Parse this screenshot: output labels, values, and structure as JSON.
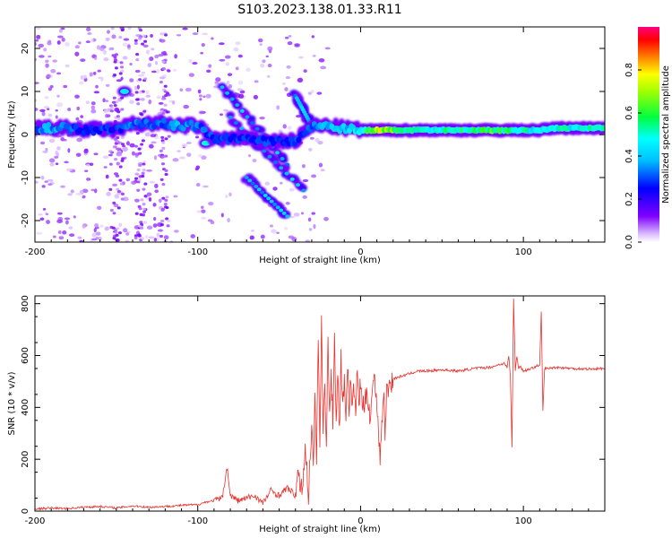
{
  "figure": {
    "title": "S103.2023.138.01.33.R11"
  },
  "colors": {
    "snr_line": "#e8322e",
    "colormap": [
      "#ffffff",
      "#8000ff",
      "#0000ff",
      "#00ffff",
      "#00ff00",
      "#ffff00",
      "#ff8000",
      "#ff0000",
      "#ff0080"
    ]
  },
  "chart_data": [
    {
      "type": "heatmap",
      "title": "",
      "xlabel": "Height of straight line (km)",
      "ylabel": "Frequency (Hz)",
      "xlim": [
        -200,
        150
      ],
      "ylim": [
        -25,
        25
      ],
      "x_ticks": [
        -200,
        -100,
        0,
        100
      ],
      "y_ticks": [
        -20,
        -10,
        0,
        10,
        20
      ],
      "colorbar": {
        "label": "Normalized spectral amplitude",
        "range": [
          0,
          1
        ],
        "ticks": [
          "0.0",
          "0.2",
          "0.4",
          "0.6",
          "0.8"
        ]
      },
      "features": {
        "main_trace": {
          "x": [
            -200,
            -190,
            -180,
            -170,
            -160,
            -150,
            -140,
            -130,
            -120,
            -110,
            -100,
            -90,
            -80,
            -70,
            -60,
            -50,
            -40,
            -30,
            -20,
            -10,
            0,
            10,
            20,
            30,
            40,
            50,
            60,
            70,
            80,
            90,
            100,
            110,
            120,
            130,
            140,
            150
          ],
          "freq": [
            1.5,
            1.5,
            1.5,
            1,
            1.2,
            1,
            2.5,
            2.5,
            2.5,
            2,
            2,
            -1,
            -1,
            -1,
            -1.5,
            -1.5,
            -1.5,
            2,
            2,
            1.5,
            1,
            1,
            1,
            1,
            1,
            1,
            1,
            1,
            1,
            1,
            1,
            1,
            1.5,
            1.5,
            1.5,
            1.5
          ],
          "amplitude": [
            0.35,
            0.4,
            0.35,
            0.3,
            0.3,
            0.3,
            0.35,
            0.35,
            0.35,
            0.4,
            0.35,
            0.3,
            0.3,
            0.3,
            0.3,
            0.3,
            0.3,
            0.35,
            0.4,
            0.45,
            0.5,
            0.8,
            0.7,
            0.55,
            0.55,
            0.55,
            0.6,
            0.6,
            0.65,
            0.6,
            0.55,
            0.5,
            0.55,
            0.55,
            0.55,
            0.55
          ]
        },
        "descending_streaks": [
          {
            "x": [
              -85,
              -45
            ],
            "freq": [
              11,
              -7
            ]
          },
          {
            "x": [
              -80,
              -35
            ],
            "freq": [
              4,
              -13
            ]
          },
          {
            "x": [
              -70,
              -45
            ],
            "freq": [
              -10,
              -19
            ]
          },
          {
            "x": [
              -40,
              -30
            ],
            "freq": [
              9,
              2
            ]
          }
        ],
        "blobs": [
          {
            "x": -145,
            "freq": 10,
            "amplitude": 0.45
          },
          {
            "x": -95,
            "freq": -2,
            "amplitude": 0.5
          }
        ]
      }
    },
    {
      "type": "line",
      "title": "",
      "xlabel": "Height of straight line (km)",
      "ylabel": "SNR (10 * v/v)",
      "xlim": [
        -200,
        150
      ],
      "ylim": [
        0,
        830
      ],
      "x_ticks": [
        -200,
        -100,
        0,
        100
      ],
      "y_ticks": [
        0,
        200,
        400,
        600,
        800
      ],
      "series": [
        {
          "x": [
            -200,
            -190,
            -180,
            -170,
            -160,
            -150,
            -140,
            -130,
            -120,
            -110,
            -100,
            -95,
            -90,
            -85,
            -82,
            -80,
            -75,
            -70,
            -65,
            -60,
            -55,
            -50,
            -45,
            -40,
            -38,
            -36,
            -34,
            -32,
            -30,
            -29,
            -28,
            -27,
            -26,
            -25,
            -24,
            -23,
            -22,
            -21,
            -20,
            -19,
            -18,
            -17,
            -16,
            -15,
            -14,
            -13,
            -12,
            -11,
            -10,
            -9,
            -8,
            -7,
            -6,
            -5,
            -4,
            -3,
            -2,
            -1,
            0,
            2,
            4,
            6,
            8,
            10,
            12,
            14,
            15,
            16,
            18,
            20,
            25,
            30,
            35,
            40,
            50,
            60,
            70,
            80,
            85,
            88,
            90,
            91,
            92,
            93,
            94,
            95,
            96,
            97,
            98,
            100,
            105,
            108,
            110,
            111,
            112,
            113,
            115,
            120,
            130,
            140,
            150
          ],
          "y": [
            8,
            12,
            10,
            15,
            18,
            12,
            20,
            15,
            18,
            22,
            25,
            35,
            40,
            50,
            170,
            60,
            40,
            50,
            60,
            30,
            80,
            60,
            90,
            60,
            140,
            70,
            250,
            60,
            350,
            150,
            420,
            200,
            700,
            240,
            730,
            300,
            500,
            280,
            650,
            380,
            520,
            350,
            670,
            360,
            540,
            300,
            600,
            380,
            520,
            380,
            560,
            400,
            500,
            390,
            480,
            380,
            550,
            400,
            500,
            380,
            470,
            360,
            520,
            430,
            200,
            470,
            300,
            460,
            490,
            510,
            520,
            530,
            540,
            540,
            545,
            540,
            550,
            555,
            565,
            570,
            555,
            600,
            520,
            250,
            820,
            540,
            600,
            550,
            560,
            540,
            550,
            560,
            560,
            770,
            390,
            550,
            550,
            555,
            550,
            548,
            550
          ]
        }
      ]
    }
  ]
}
